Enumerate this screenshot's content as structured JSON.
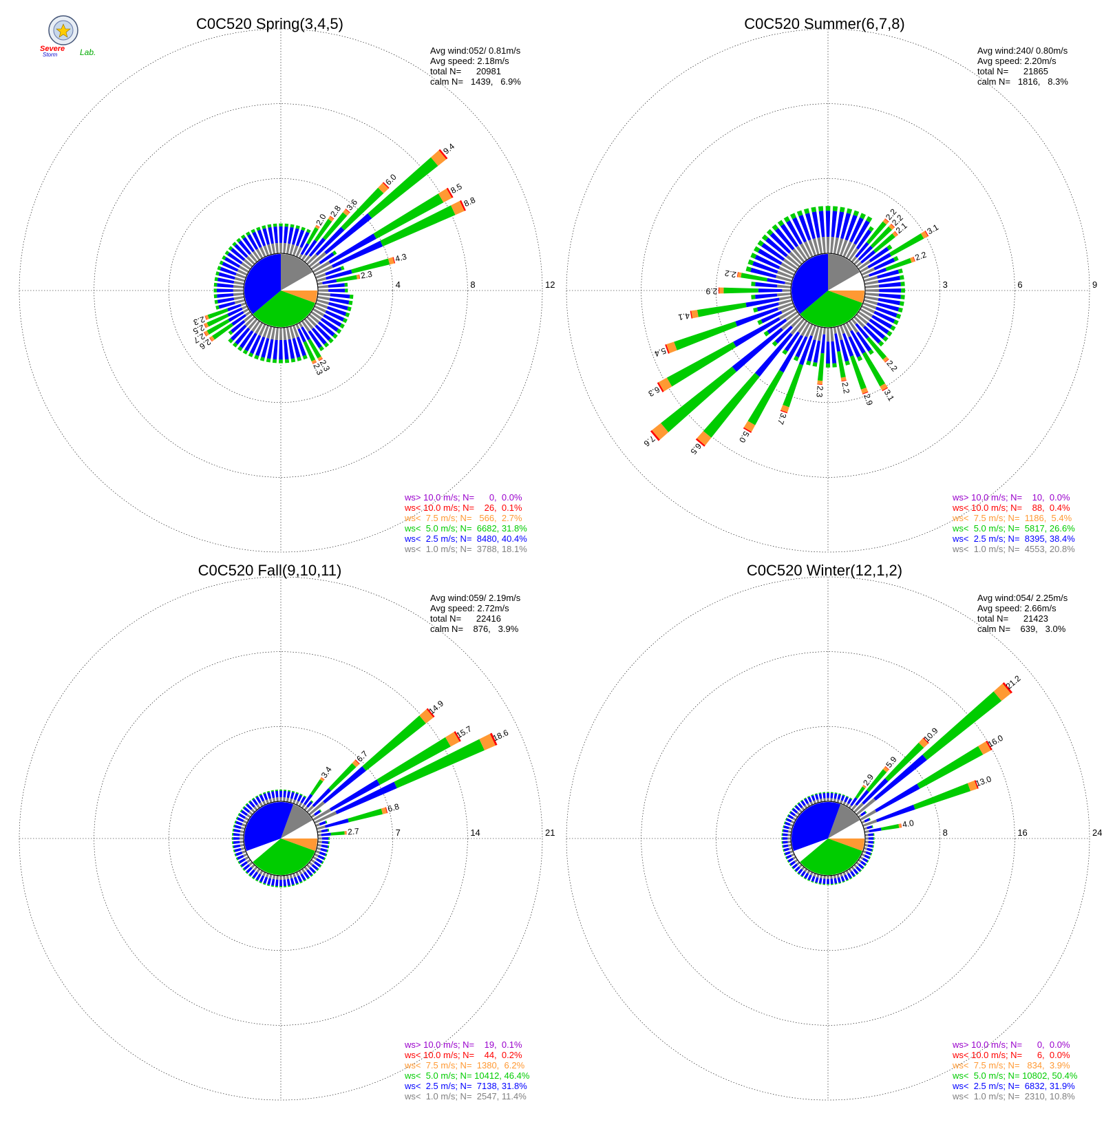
{
  "logo": {
    "text_top": "Severe",
    "text_bottom": "Storm",
    "text_lab": "Lab."
  },
  "colors": {
    "calm": "#808080",
    "lt1": "#808080",
    "lt2_5": "#0000ff",
    "lt5": "#00cc00",
    "lt7_5": "#ff9933",
    "lt10": "#ff0000",
    "gt10": "#9900cc",
    "grid": "#000000"
  },
  "chart_data": [
    {
      "type": "windrose",
      "title": "C0C520 Spring(3,4,5)",
      "stats": {
        "avg_wind": "Avg wind:052/ 0.81m/s",
        "avg_speed": "Avg speed: 2.18m/s",
        "total": "total N=      20981",
        "calm": "calm N=   1439,   6.9%"
      },
      "ring_labels": [
        "4",
        "8",
        "12"
      ],
      "ring_values": [
        4,
        8,
        12
      ],
      "calm_percent": 6.9,
      "legend": [
        {
          "text": "ws> 10.0 m/s; N=      0,  0.0%",
          "class": "gt10"
        },
        {
          "text": "ws< 10.0 m/s; N=    26,  0.1%",
          "class": "lt10"
        },
        {
          "text": "ws<  7.5 m/s; N=   566,  2.7%",
          "class": "lt7_5"
        },
        {
          "text": "ws<  5.0 m/s; N=  6682, 31.8%",
          "class": "lt5"
        },
        {
          "text": "ws<  2.5 m/s; N=  8480, 40.4%",
          "class": "lt2_5"
        },
        {
          "text": "ws<  1.0 m/s; N=  3788, 18.1%",
          "class": "lt1"
        }
      ],
      "labeled_sectors": [
        {
          "dir": 30,
          "total": 2.0,
          "label": "2.0"
        },
        {
          "dir": 35,
          "total": 2.8,
          "label": "2.8"
        },
        {
          "dir": 40,
          "total": 3.6,
          "label": "3.6"
        },
        {
          "dir": 45,
          "total": 6.0,
          "label": "6.0"
        },
        {
          "dir": 50,
          "total": 9.4,
          "label": "9.4"
        },
        {
          "dir": 60,
          "total": 8.5,
          "label": "8.5"
        },
        {
          "dir": 65,
          "total": 8.8,
          "label": "8.8"
        },
        {
          "dir": 75,
          "total": 4.3,
          "label": "4.3"
        },
        {
          "dir": 80,
          "total": 2.3,
          "label": "2.3"
        },
        {
          "dir": 150,
          "total": 2.3,
          "label": "2.3"
        },
        {
          "dir": 155,
          "total": 2.3,
          "label": "2.3"
        },
        {
          "dir": 235,
          "total": 2.6,
          "label": "2.6"
        },
        {
          "dir": 240,
          "total": 2.7,
          "label": "2.7"
        },
        {
          "dir": 245,
          "total": 2.5,
          "label": "2.5"
        },
        {
          "dir": 250,
          "total": 2.3,
          "label": "2.3"
        }
      ]
    },
    {
      "type": "windrose",
      "title": "C0C520 Summer(6,7,8)",
      "stats": {
        "avg_wind": "Avg wind:240/ 0.80m/s",
        "avg_speed": "Avg speed: 2.20m/s",
        "total": "total N=      21865",
        "calm": "calm N=   1816,   8.3%"
      },
      "ring_labels": [
        "3",
        "6",
        "9"
      ],
      "ring_values": [
        3,
        6,
        9
      ],
      "calm_percent": 8.3,
      "legend": [
        {
          "text": "ws> 10.0 m/s; N=    10,  0.0%",
          "class": "gt10"
        },
        {
          "text": "ws< 10.0 m/s; N=    88,  0.4%",
          "class": "lt10"
        },
        {
          "text": "ws<  7.5 m/s; N=  1186,  5.4%",
          "class": "lt7_5"
        },
        {
          "text": "ws<  5.0 m/s; N=  5817, 26.6%",
          "class": "lt5"
        },
        {
          "text": "ws<  2.5 m/s; N=  8395, 38.4%",
          "class": "lt2_5"
        },
        {
          "text": "ws<  1.0 m/s; N=  4553, 20.8%",
          "class": "lt1"
        }
      ],
      "labeled_sectors": [
        {
          "dir": 40,
          "total": 2.2,
          "label": "2.2"
        },
        {
          "dir": 45,
          "total": 2.2,
          "label": "2.2"
        },
        {
          "dir": 50,
          "total": 2.1,
          "label": "2.1"
        },
        {
          "dir": 60,
          "total": 3.1,
          "label": "3.1"
        },
        {
          "dir": 70,
          "total": 2.2,
          "label": "2.2"
        },
        {
          "dir": 140,
          "total": 2.2,
          "label": "2.2"
        },
        {
          "dir": 150,
          "total": 3.1,
          "label": "3.1"
        },
        {
          "dir": 160,
          "total": 2.9,
          "label": "2.9"
        },
        {
          "dir": 170,
          "total": 2.2,
          "label": "2.2"
        },
        {
          "dir": 185,
          "total": 2.3,
          "label": "2.3"
        },
        {
          "dir": 200,
          "total": 3.7,
          "label": "3.7"
        },
        {
          "dir": 210,
          "total": 5.0,
          "label": "5.0"
        },
        {
          "dir": 220,
          "total": 6.5,
          "label": "6.5"
        },
        {
          "dir": 230,
          "total": 7.6,
          "label": "7.6"
        },
        {
          "dir": 240,
          "total": 6.3,
          "label": "6.3"
        },
        {
          "dir": 250,
          "total": 5.4,
          "label": "5.4"
        },
        {
          "dir": 260,
          "total": 4.1,
          "label": "4.1"
        },
        {
          "dir": 270,
          "total": 2.9,
          "label": "2.9"
        },
        {
          "dir": 280,
          "total": 2.2,
          "label": "2.2"
        }
      ]
    },
    {
      "type": "windrose",
      "title": "C0C520 Fall(9,10,11)",
      "stats": {
        "avg_wind": "Avg wind:059/ 2.19m/s",
        "avg_speed": "Avg speed: 2.72m/s",
        "total": "total N=      22416",
        "calm": "calm N=    876,   3.9%"
      },
      "ring_labels": [
        "7",
        "14",
        "21"
      ],
      "ring_values": [
        7,
        14,
        21
      ],
      "calm_percent": 3.9,
      "legend": [
        {
          "text": "ws> 10.0 m/s; N=    19,  0.1%",
          "class": "gt10"
        },
        {
          "text": "ws< 10.0 m/s; N=    44,  0.2%",
          "class": "lt10"
        },
        {
          "text": "ws<  7.5 m/s; N=  1380,  6.2%",
          "class": "lt7_5"
        },
        {
          "text": "ws<  5.0 m/s; N= 10412, 46.4%",
          "class": "lt5"
        },
        {
          "text": "ws<  2.5 m/s; N=  7138, 31.8%",
          "class": "lt2_5"
        },
        {
          "text": "ws<  1.0 m/s; N=  2547, 11.4%",
          "class": "lt1"
        }
      ],
      "labeled_sectors": [
        {
          "dir": 35,
          "total": 3.4,
          "label": "3.4"
        },
        {
          "dir": 45,
          "total": 6.7,
          "label": "6.7"
        },
        {
          "dir": 50,
          "total": 14.9,
          "label": "14.9"
        },
        {
          "dir": 60,
          "total": 15.7,
          "label": "15.7"
        },
        {
          "dir": 65,
          "total": 18.6,
          "label": "18.6"
        },
        {
          "dir": 75,
          "total": 6.8,
          "label": "6.8"
        },
        {
          "dir": 85,
          "total": 2.7,
          "label": "2.7"
        }
      ]
    },
    {
      "type": "windrose",
      "title": "C0C520 Winter(12,1,2)",
      "stats": {
        "avg_wind": "Avg wind:054/ 2.25m/s",
        "avg_speed": "Avg speed: 2.66m/s",
        "total": "total N=      21423",
        "calm": "calm N=    639,   3.0%"
      },
      "ring_labels": [
        "8",
        "16",
        "24"
      ],
      "ring_values": [
        8,
        16,
        24
      ],
      "calm_percent": 3.0,
      "legend": [
        {
          "text": "ws> 10.0 m/s; N=      0,  0.0%",
          "class": "gt10"
        },
        {
          "text": "ws< 10.0 m/s; N=      6,  0.0%",
          "class": "lt10"
        },
        {
          "text": "ws<  7.5 m/s; N=   834,  3.9%",
          "class": "lt7_5"
        },
        {
          "text": "ws<  5.0 m/s; N= 10802, 50.4%",
          "class": "lt5"
        },
        {
          "text": "ws<  2.5 m/s; N=  6832, 31.9%",
          "class": "lt2_5"
        },
        {
          "text": "ws<  1.0 m/s; N=  2310, 10.8%",
          "class": "lt1"
        }
      ],
      "labeled_sectors": [
        {
          "dir": 35,
          "total": 2.9,
          "label": "2.9"
        },
        {
          "dir": 40,
          "total": 5.9,
          "label": "5.9"
        },
        {
          "dir": 45,
          "total": 10.9,
          "label": "10.9"
        },
        {
          "dir": 50,
          "total": 21.2,
          "label": "21.2"
        },
        {
          "dir": 60,
          "total": 16.0,
          "label": "16.0"
        },
        {
          "dir": 70,
          "total": 13.0,
          "label": "13.0"
        },
        {
          "dir": 80,
          "total": 4.0,
          "label": "4.0"
        }
      ]
    }
  ]
}
